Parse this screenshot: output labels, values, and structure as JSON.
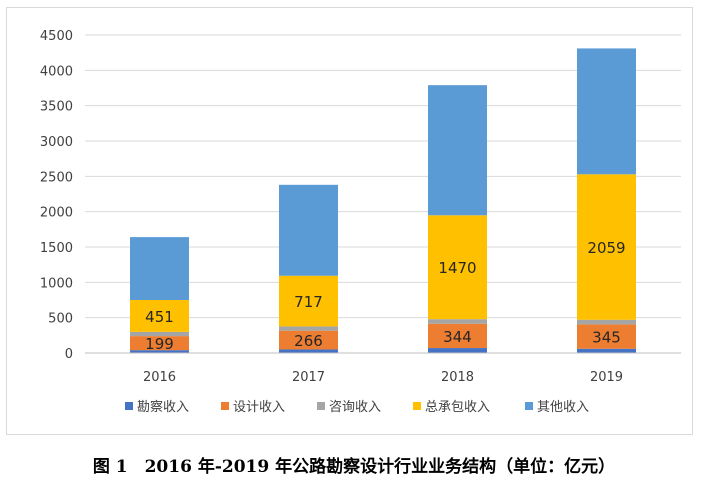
{
  "caption": "图 1　2016 年-2019 年公路勘察设计行业业务结构（单位：亿元）",
  "chart_data": {
    "type": "bar",
    "stacked": true,
    "categories": [
      "2016",
      "2017",
      "2018",
      "2019"
    ],
    "series": [
      {
        "name": "勘察收入",
        "color": "#4472c4",
        "values": [
          40,
          50,
          70,
          60
        ],
        "labels": [
          "",
          "",
          "",
          ""
        ]
      },
      {
        "name": "设计收入",
        "color": "#ed7d31",
        "values": [
          199,
          266,
          344,
          345
        ],
        "labels": [
          "199",
          "266",
          "344",
          "345"
        ]
      },
      {
        "name": "咨询收入",
        "color": "#a5a5a5",
        "values": [
          60,
          60,
          65,
          65
        ],
        "labels": [
          "",
          "",
          "",
          ""
        ]
      },
      {
        "name": "总承包收入",
        "color": "#ffc000",
        "values": [
          451,
          717,
          1470,
          2059
        ],
        "labels": [
          "451",
          "717",
          "1470",
          "2059"
        ]
      },
      {
        "name": "其他收入",
        "color": "#5b9bd5",
        "values": [
          890,
          1287,
          1841,
          1781
        ],
        "labels": [
          "",
          "",
          "",
          ""
        ]
      }
    ],
    "ylim": [
      0,
      4500
    ],
    "yticks": [
      0,
      500,
      1000,
      1500,
      2000,
      2500,
      3000,
      3500,
      4000,
      4500
    ],
    "grid": true,
    "legend": "bottom"
  }
}
